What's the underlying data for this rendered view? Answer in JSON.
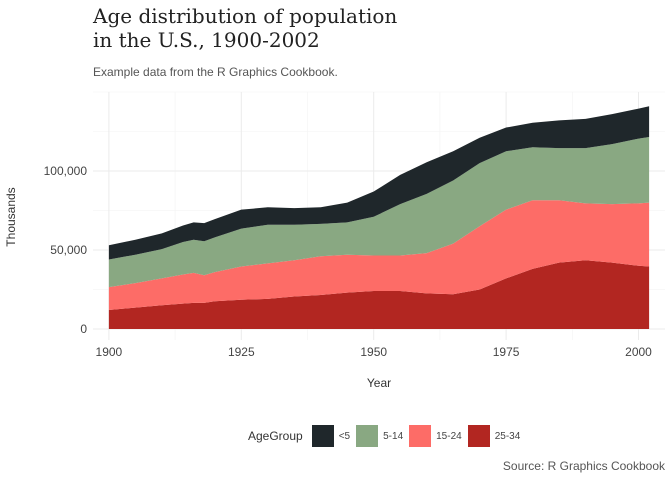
{
  "title": "Age distribution of population\nin the U.S., 1900-2002",
  "subtitle": "Example data from the R Graphics Cookbook.",
  "caption": "Source: R Graphics Cookbook",
  "legend_title": "AgeGroup",
  "colors": {
    "background": "#ffffff",
    "grid_major": "#ebebeb",
    "grid_minor": "#f4f4f4",
    "text": "#444444"
  },
  "chart_data": {
    "type": "area",
    "stacked": true,
    "xlabel": "Year",
    "ylabel": "Thousands",
    "xlim": [
      1897,
      2005
    ],
    "ylim": [
      -7000,
      150000
    ],
    "x_ticks": [
      1900,
      1925,
      1950,
      1975,
      2000
    ],
    "x_tick_labels": [
      "1900",
      "1925",
      "1950",
      "1975",
      "2000"
    ],
    "y_ticks": [
      0,
      50000,
      100000
    ],
    "y_tick_labels": [
      "0",
      "50,000",
      "100,000"
    ],
    "grid": true,
    "legend_position": "bottom",
    "x": [
      1900,
      1905,
      1910,
      1914,
      1916,
      1918,
      1920,
      1925,
      1930,
      1935,
      1940,
      1945,
      1950,
      1955,
      1960,
      1965,
      1970,
      1975,
      1980,
      1985,
      1990,
      1995,
      2000,
      2002
    ],
    "series": [
      {
        "name": "25-34",
        "color": "#b22621",
        "values": [
          12000,
          13500,
          15000,
          16000,
          16500,
          16500,
          17500,
          18500,
          19000,
          20500,
          21500,
          23000,
          24000,
          24000,
          22500,
          22000,
          25000,
          32000,
          38000,
          42000,
          43500,
          42000,
          40000,
          39500
        ]
      },
      {
        "name": "15-24",
        "color": "#fd6c67",
        "values": [
          14500,
          15500,
          17000,
          18500,
          19000,
          17500,
          18500,
          21000,
          22500,
          23000,
          24500,
          24000,
          22500,
          22500,
          25500,
          32000,
          40000,
          43500,
          43500,
          39500,
          36000,
          37000,
          39500,
          40500
        ]
      },
      {
        "name": "5-14",
        "color": "#89a882",
        "values": [
          17500,
          18000,
          18500,
          20500,
          21000,
          21500,
          22000,
          24000,
          24500,
          22500,
          20500,
          20500,
          24500,
          32500,
          37500,
          40000,
          40000,
          37000,
          33500,
          33000,
          35000,
          38000,
          41000,
          41500
        ]
      },
      {
        "name": "<5",
        "color": "#1f272b",
        "values": [
          9000,
          9500,
          10000,
          10500,
          11000,
          11500,
          11500,
          12000,
          11000,
          10500,
          10500,
          12500,
          16000,
          18500,
          20000,
          18500,
          16000,
          15000,
          15500,
          17500,
          18500,
          19000,
          19000,
          19500
        ]
      }
    ]
  }
}
